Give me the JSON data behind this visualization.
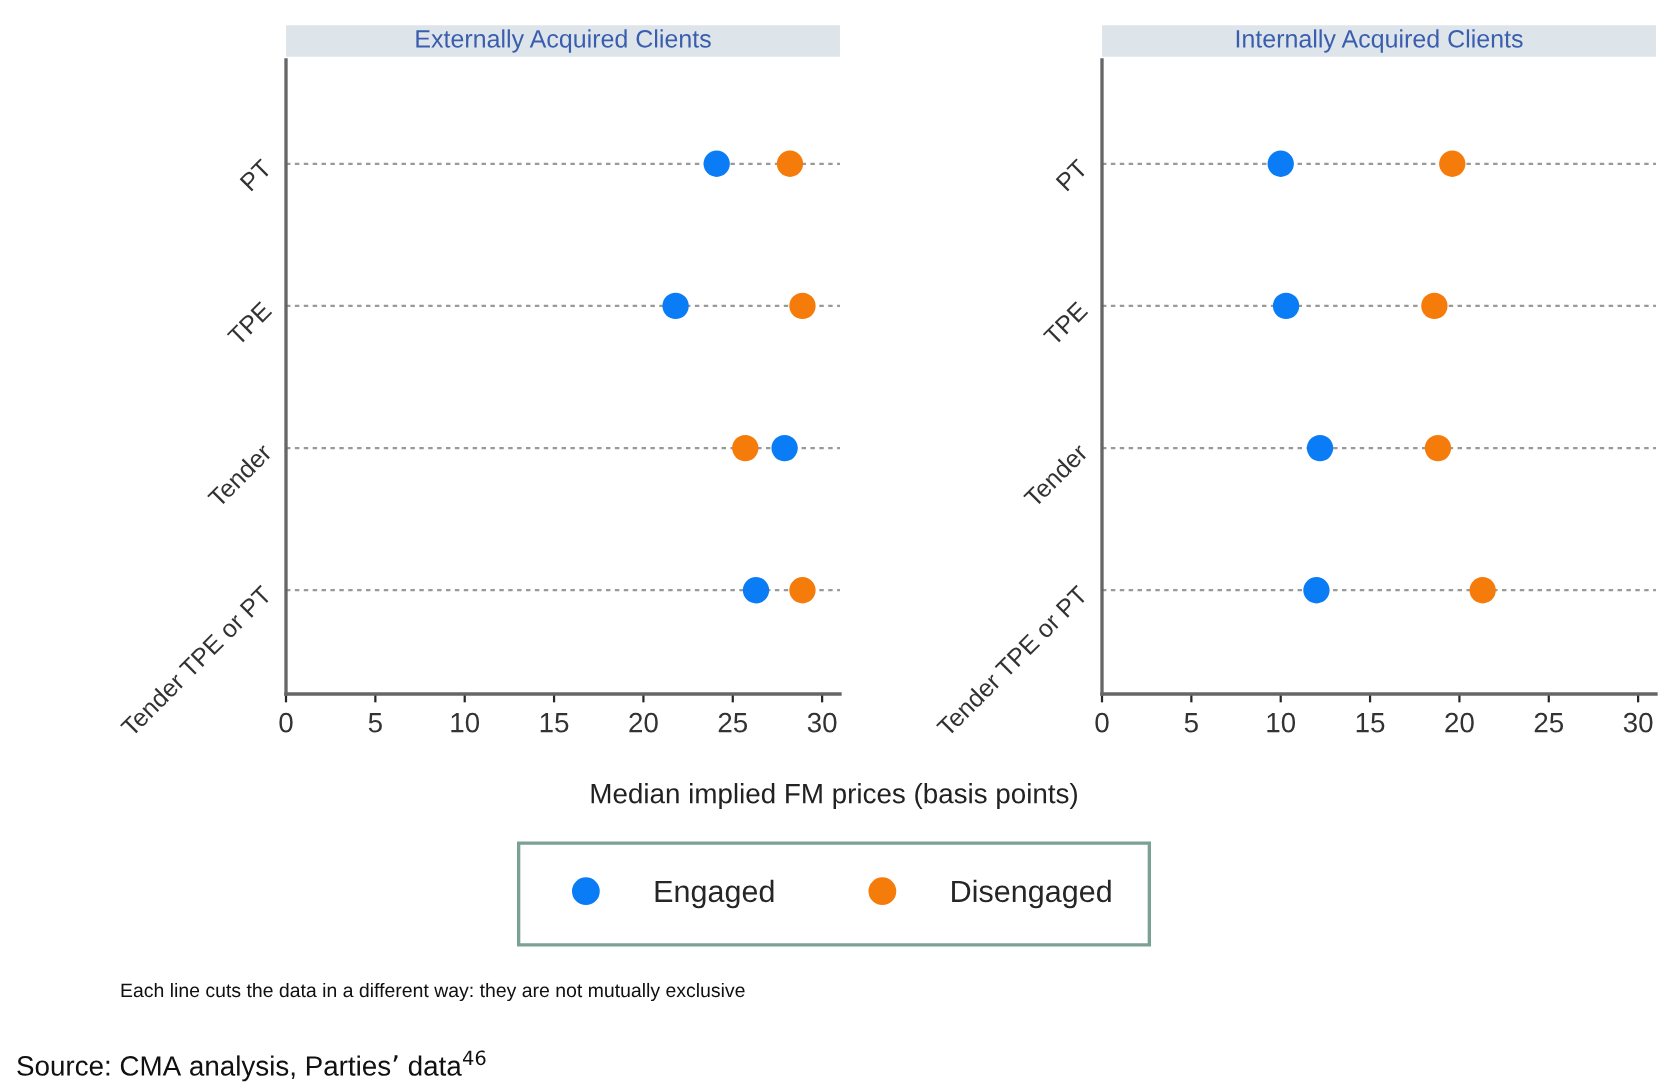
{
  "chart_data": [
    {
      "type": "scatter",
      "title": "Externally Acquired Clients",
      "xlabel": "Median implied FM prices (basis points)",
      "categories": [
        "PT",
        "TPE",
        "Tender",
        "Tender TPE or PT"
      ],
      "xlim": [
        0,
        31
      ],
      "xticks": [
        0,
        5,
        10,
        15,
        20,
        25,
        30
      ],
      "orientation": "horizontal",
      "grid": "y",
      "marker": "circle",
      "legend": "bottom",
      "series": [
        {
          "name": "Engaged",
          "color": "#0a7cf5",
          "values": [
            24.1,
            21.8,
            27.9,
            26.3
          ]
        },
        {
          "name": "Disengaged",
          "color": "#f57c0a",
          "values": [
            28.2,
            28.9,
            25.7,
            28.9
          ]
        }
      ],
      "annotations": [
        "Each line cuts the data in a different way: they are not mutually exclusive",
        "Source: CMA analysis, Parties’ data$^{46}$"
      ]
    },
    {
      "type": "scatter",
      "title": "Internally Acquired Clients",
      "categories": [
        "PT",
        "TPE",
        "Tender",
        "Tender TPE or PT"
      ],
      "xlim": [
        0,
        31
      ],
      "xticks": [
        0,
        5,
        10,
        15,
        20,
        25,
        30
      ],
      "orientation": "horizontal",
      "grid": "y",
      "marker": "circle",
      "series": [
        {
          "color": "#0a7cf5",
          "values": [
            10.0,
            10.3,
            12.2,
            12.0
          ]
        },
        {
          "color": "#f57c0a",
          "values": [
            19.6,
            18.6,
            18.8,
            21.3
          ]
        }
      ]
    }
  ]
}
